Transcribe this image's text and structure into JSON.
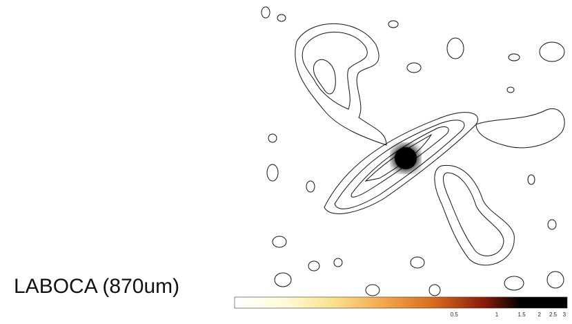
{
  "caption": "LABOCA (870um)",
  "colorbar": {
    "ticks": [
      0.5,
      1,
      1.5,
      2,
      2.5,
      3
    ]
  }
}
